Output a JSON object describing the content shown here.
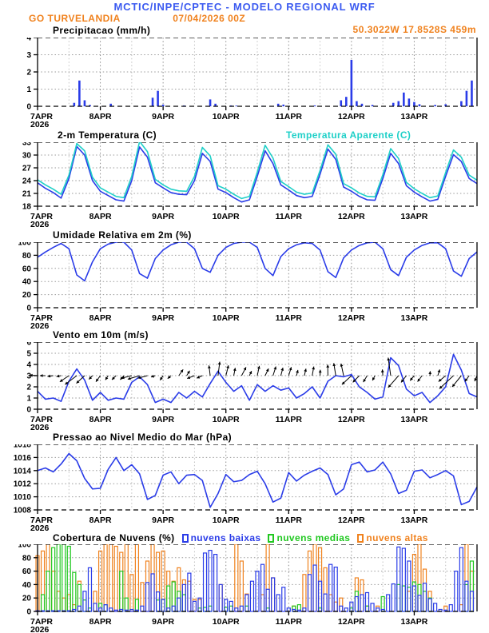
{
  "header": {
    "title": "MCTIC/INPE/CPTEC - MODELO REGIONAL WRF",
    "station": "GO TURVELANDIA",
    "run": "07/04/2026 00Z",
    "location": "50.3022W 17.8528S 459m"
  },
  "colors": {
    "header_blue": "#3b5af0",
    "orange": "#f0821e",
    "series_blue": "#2a3ce8",
    "cyan": "#1fd0c8",
    "green": "#21c821",
    "black": "#000000",
    "grid_gray": "#9a9a9a"
  },
  "x_axis": {
    "tick_labels": [
      "7APR",
      "8APR",
      "9APR",
      "10APR",
      "11APR",
      "12APR",
      "13APR"
    ],
    "year_label": "2026",
    "span_hours": 168,
    "tick_every_hours": 24
  },
  "chart_data": [
    {
      "name": "precipitation",
      "type": "bar",
      "title": "Precipitacao (mm/h)",
      "ylabel": "mm/h",
      "ylim": [
        0,
        4
      ],
      "yticks": [
        0,
        1,
        2,
        3,
        4
      ],
      "series": [
        {
          "name": "precipitacao",
          "color": "#2a3ce8",
          "step_hours": 2,
          "values": [
            0,
            0,
            0,
            0,
            0,
            0,
            0,
            0.2,
            1.5,
            0.35,
            0.08,
            0,
            0,
            0,
            0.15,
            0,
            0,
            0,
            0,
            0,
            0,
            0,
            0.5,
            0.9,
            0.1,
            0,
            0,
            0,
            0.05,
            0,
            0,
            0,
            0,
            0.4,
            0.15,
            0,
            0,
            0.05,
            0.04,
            0,
            0,
            0,
            0,
            0.03,
            0,
            0,
            0.15,
            0.1,
            0,
            0,
            0,
            0,
            0,
            0.05,
            0,
            0,
            0,
            0,
            0.35,
            0.55,
            2.7,
            0.3,
            0.15,
            0,
            0.08,
            0,
            0,
            0,
            0.2,
            0.3,
            0.8,
            0.45,
            0.25,
            0.12,
            0,
            0,
            0.08,
            0,
            0.12,
            0,
            0,
            0.3,
            0.9,
            1.5
          ]
        }
      ]
    },
    {
      "name": "temperature",
      "type": "line",
      "title": "2-m Temperatura (C)",
      "title_right": "Temperatura Aparente (C)",
      "ylim": [
        18,
        33
      ],
      "yticks": [
        18,
        21,
        24,
        27,
        30,
        33
      ],
      "series": [
        {
          "name": "temperatura_2m",
          "color": "#2a3ce8",
          "step_hours": 3,
          "values": [
            23.5,
            22.2,
            21.2,
            19.9,
            24.5,
            32.0,
            30.0,
            24.0,
            21.5,
            20.5,
            19.5,
            19.2,
            24.0,
            31.9,
            29.5,
            23.5,
            22.3,
            21.2,
            20.8,
            20.7,
            24.0,
            30.4,
            28.5,
            22.0,
            21.2,
            20.0,
            19.0,
            19.5,
            25.0,
            31.0,
            28.0,
            23.0,
            21.8,
            20.5,
            20.0,
            20.3,
            25.5,
            31.4,
            29.0,
            22.5,
            21.5,
            20.3,
            19.5,
            19.4,
            24.5,
            30.4,
            28.0,
            22.8,
            21.3,
            20.2,
            19.2,
            19.6,
            25.0,
            30.1,
            28.5,
            24.5,
            23.3
          ]
        },
        {
          "name": "temperatura_aparente",
          "color": "#1fd0c8",
          "step_hours": 3,
          "values": [
            24.2,
            23.0,
            22.0,
            20.8,
            25.3,
            32.7,
            31.0,
            24.8,
            22.3,
            21.3,
            20.3,
            20.0,
            25.0,
            33.2,
            30.8,
            24.3,
            23.0,
            22.0,
            21.6,
            21.5,
            25.0,
            31.8,
            29.8,
            22.8,
            22.0,
            20.8,
            19.8,
            20.3,
            26.0,
            32.3,
            29.3,
            23.8,
            22.6,
            21.3,
            20.8,
            21.1,
            26.4,
            32.4,
            30.2,
            23.3,
            22.3,
            21.1,
            20.3,
            20.2,
            25.4,
            31.5,
            29.2,
            23.6,
            22.1,
            21.0,
            20.0,
            20.4,
            25.9,
            31.2,
            29.5,
            25.3,
            24.1
          ]
        }
      ]
    },
    {
      "name": "humidity",
      "type": "line",
      "title": "Umidade Relativa em 2m (%)",
      "ylim": [
        0,
        100
      ],
      "yticks": [
        0,
        20,
        40,
        60,
        80,
        100
      ],
      "series": [
        {
          "name": "umidade_relativa",
          "color": "#2a3ce8",
          "step_hours": 3,
          "values": [
            77,
            85,
            92,
            98,
            90,
            50,
            41,
            70,
            90,
            97,
            100,
            100,
            88,
            52,
            45,
            75,
            88,
            96,
            100,
            100,
            90,
            60,
            54,
            80,
            92,
            98,
            100,
            100,
            92,
            60,
            49,
            78,
            90,
            96,
            99,
            98,
            88,
            55,
            46,
            76,
            88,
            95,
            99,
            100,
            90,
            58,
            49,
            77,
            88,
            95,
            99,
            99,
            90,
            56,
            48,
            75,
            85
          ]
        }
      ]
    },
    {
      "name": "wind",
      "type": "line",
      "title": "Vento em 10m (m/s)",
      "ylim": [
        0,
        6
      ],
      "yticks": [
        0,
        1,
        2,
        3,
        4,
        5,
        6
      ],
      "series": [
        {
          "name": "velocidade_vento",
          "color": "#2a3ce8",
          "step_hours": 3,
          "values": [
            1.6,
            0.9,
            1.0,
            0.7,
            2.5,
            3.6,
            2.6,
            0.8,
            1.5,
            0.8,
            1.0,
            0.9,
            2.4,
            2.9,
            2.2,
            0.6,
            0.9,
            0.6,
            1.5,
            1.0,
            1.6,
            1.1,
            2.3,
            3.4,
            2.4,
            1.6,
            2.1,
            0.8,
            2.2,
            1.6,
            2.1,
            1.7,
            1.9,
            1.0,
            1.4,
            2.0,
            1.0,
            2.5,
            3.0,
            2.9,
            3.1,
            2.0,
            1.5,
            0.9,
            1.1,
            4.6,
            3.9,
            1.8,
            1.2,
            1.5,
            0.6,
            1.2,
            2.0,
            4.9,
            3.5,
            1.4,
            1.1
          ]
        }
      ],
      "vectors": {
        "anchor_y": 3,
        "step_hours": 6,
        "color": "#000000",
        "angles_deg": [
          185,
          190,
          210,
          230,
          235,
          220,
          200,
          195,
          230,
          60,
          200,
          90,
          80,
          60,
          70,
          75,
          70,
          85,
          90,
          95,
          230,
          240,
          90,
          235,
          230,
          80,
          225,
          230,
          240
        ]
      }
    },
    {
      "name": "pressure",
      "type": "line",
      "title": "Pressao ao Nivel Medio do Mar (hPa)",
      "ylim": [
        1008,
        1018
      ],
      "yticks": [
        1008,
        1010,
        1012,
        1014,
        1016,
        1018
      ],
      "series": [
        {
          "name": "pressao_nivel_mar",
          "color": "#2a3ce8",
          "step_hours": 3,
          "values": [
            1014.0,
            1014.4,
            1013.8,
            1015.0,
            1016.6,
            1015.5,
            1012.8,
            1011.2,
            1011.3,
            1014.2,
            1016.0,
            1014.0,
            1014.9,
            1013.5,
            1009.6,
            1010.2,
            1013.3,
            1013.8,
            1012.0,
            1013.3,
            1013.4,
            1012.5,
            1008.4,
            1010.5,
            1013.4,
            1012.3,
            1012.5,
            1013.4,
            1013.9,
            1012.0,
            1009.2,
            1009.8,
            1013.7,
            1012.4,
            1013.3,
            1013.9,
            1014.4,
            1013.4,
            1010.3,
            1011.2,
            1014.9,
            1015.3,
            1013.8,
            1014.1,
            1015.3,
            1013.5,
            1010.5,
            1011.0,
            1013.9,
            1014.1,
            1012.9,
            1013.4,
            1014.0,
            1013.2,
            1008.8,
            1009.3,
            1011.5
          ]
        }
      ]
    },
    {
      "name": "clouds",
      "type": "bar",
      "bar_style": "hollow",
      "title": "Cobertura de Nuvens (%)",
      "ylim": [
        0,
        100
      ],
      "yticks": [
        0,
        20,
        40,
        60,
        80,
        100
      ],
      "series": [
        {
          "name": "nuvens_altas",
          "label": "nuvens altas",
          "color": "#f0821e",
          "step_hours": 2,
          "values": [
            83,
            90,
            100,
            60,
            30,
            20,
            25,
            10,
            45,
            0,
            0,
            30,
            90,
            100,
            100,
            97,
            88,
            100,
            55,
            100,
            43,
            75,
            100,
            88,
            90,
            60,
            45,
            65,
            47,
            45,
            18,
            18,
            0,
            0,
            0,
            40,
            0,
            0,
            100,
            75,
            26,
            0,
            0,
            25,
            100,
            50,
            0,
            0,
            0,
            8,
            0,
            55,
            90,
            100,
            95,
            65,
            25,
            14,
            20,
            0,
            0,
            50,
            47,
            8,
            0,
            8,
            0,
            0,
            0,
            0,
            0,
            30,
            85,
            100,
            63,
            30,
            0,
            0,
            8,
            0,
            0,
            10,
            100,
            60
          ]
        },
        {
          "name": "nuvens_medias",
          "label": "nuvens medias",
          "color": "#21c821",
          "step_hours": 2,
          "values": [
            0,
            25,
            60,
            95,
            100,
            100,
            97,
            58,
            40,
            17,
            5,
            0,
            12,
            10,
            0,
            0,
            60,
            20,
            0,
            18,
            0,
            0,
            0,
            17,
            18,
            38,
            44,
            30,
            25,
            0,
            0,
            5,
            6,
            8,
            0,
            0,
            6,
            8,
            0,
            0,
            8,
            0,
            0,
            0,
            5,
            0,
            0,
            0,
            0,
            8,
            10,
            0,
            0,
            0,
            5,
            0,
            0,
            0,
            0,
            0,
            5,
            30,
            0,
            8,
            0,
            0,
            22,
            0,
            0,
            40,
            38,
            36,
            44,
            40,
            30,
            20,
            0,
            0,
            0,
            0,
            0,
            0,
            40,
            75
          ]
        },
        {
          "name": "nuvens_baixas",
          "label": "nuvens baixas",
          "color": "#2a3ce8",
          "step_hours": 2,
          "values": [
            1,
            1,
            1,
            1,
            1,
            1,
            1,
            3,
            8,
            30,
            65,
            12,
            5,
            10,
            5,
            2,
            3,
            2,
            3,
            2,
            8,
            43,
            56,
            29,
            18,
            5,
            8,
            20,
            40,
            57,
            15,
            20,
            87,
            91,
            85,
            40,
            18,
            15,
            5,
            8,
            25,
            45,
            60,
            70,
            33,
            50,
            25,
            36,
            5,
            3,
            2,
            5,
            55,
            69,
            45,
            26,
            70,
            66,
            8,
            5,
            14,
            22,
            25,
            28,
            12,
            5,
            3,
            25,
            41,
            96,
            94,
            75,
            38,
            24,
            42,
            19,
            12,
            3,
            2,
            10,
            60,
            95,
            45,
            30
          ]
        }
      ]
    }
  ]
}
